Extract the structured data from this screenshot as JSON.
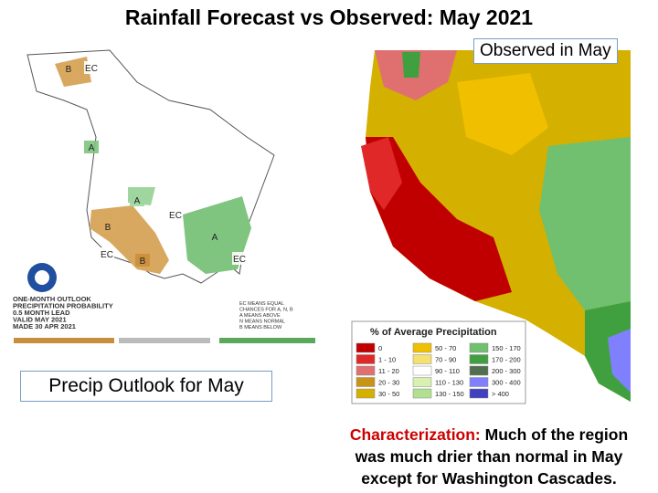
{
  "title": "Rainfall Forecast vs Observed: May 2021",
  "observed_label": "Observed in May",
  "outlook_label": "Precip Outlook for May",
  "characterization": {
    "label": "Characterization:",
    "lines": [
      "Much of the region",
      "was much drier than normal in May",
      "except for Washington Cascades."
    ]
  },
  "outlook_map": {
    "regions": [
      {
        "label": "B",
        "color": "#d9a860"
      },
      {
        "label": "EC",
        "color": "#ffffff"
      },
      {
        "label": "A",
        "color": "#7fc47f"
      },
      {
        "label": "A",
        "color": "#9fd69f"
      },
      {
        "label": "EC",
        "color": "#ffffff"
      },
      {
        "label": "B",
        "color": "#d9a860"
      },
      {
        "label": "EC",
        "color": "#ffffff"
      },
      {
        "label": "B",
        "color": "#c98e3c"
      },
      {
        "label": "A",
        "color": "#7fc47f"
      },
      {
        "label": "EC",
        "color": "#ffffff"
      }
    ],
    "caption": [
      "ONE-MONTH OUTLOOK",
      "PRECIPITATION PROBABILITY",
      "0.5 MONTH LEAD",
      "VALID MAY 2021",
      "MADE 30 APR 2021"
    ],
    "key": [
      "EC MEANS EQUAL",
      "CHANCES FOR A, N, B",
      "A MEANS ABOVE",
      "N MEANS NORMAL",
      "B MEANS BELOW"
    ]
  },
  "legend": {
    "title": "% of Average Precipitation",
    "items": [
      {
        "label": "0",
        "color": "#c00000"
      },
      {
        "label": "1 - 10",
        "color": "#e02828"
      },
      {
        "label": "11 - 20",
        "color": "#e07070"
      },
      {
        "label": "20 - 30",
        "color": "#c89418"
      },
      {
        "label": "30 - 50",
        "color": "#d4b000"
      },
      {
        "label": "50 - 70",
        "color": "#f0c000"
      },
      {
        "label": "70 - 90",
        "color": "#f5e070"
      },
      {
        "label": "90 - 110",
        "color": "#ffffff"
      },
      {
        "label": "110 - 130",
        "color": "#d8f0b0"
      },
      {
        "label": "130 - 150",
        "color": "#b0e090"
      },
      {
        "label": "150 - 170",
        "color": "#70c070"
      },
      {
        "label": "170 - 200",
        "color": "#40a040"
      },
      {
        "label": "200 - 300",
        "color": "#4f6f4f"
      },
      {
        "label": "300 - 400",
        "color": "#8080ff"
      },
      {
        "label": "> 400",
        "color": "#4040c0"
      }
    ]
  }
}
